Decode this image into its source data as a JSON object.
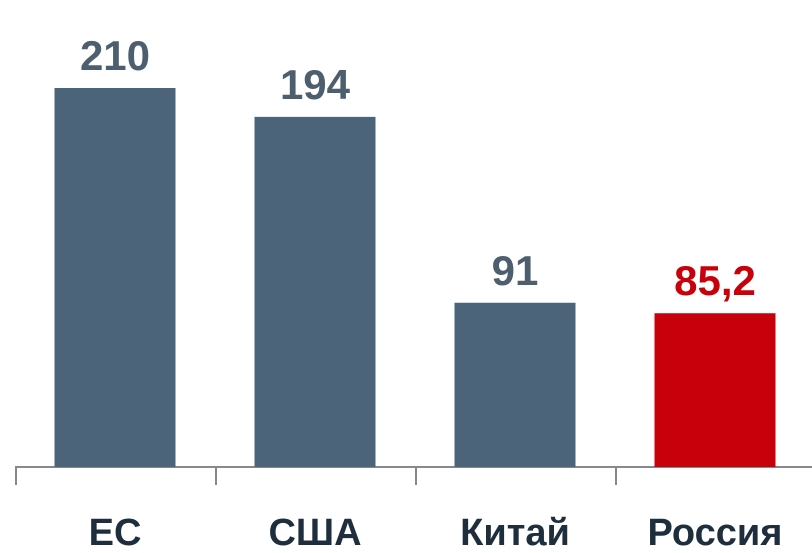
{
  "chart_data": {
    "type": "bar",
    "categories": [
      "ЕС",
      "США",
      "Китай",
      "Россия"
    ],
    "values": [
      210,
      194,
      91,
      85.2
    ],
    "value_labels": [
      "210",
      "194",
      "91",
      "85,2"
    ],
    "colors": [
      "#4b6479",
      "#4b6479",
      "#4b6479",
      "#c8000b"
    ]
  }
}
